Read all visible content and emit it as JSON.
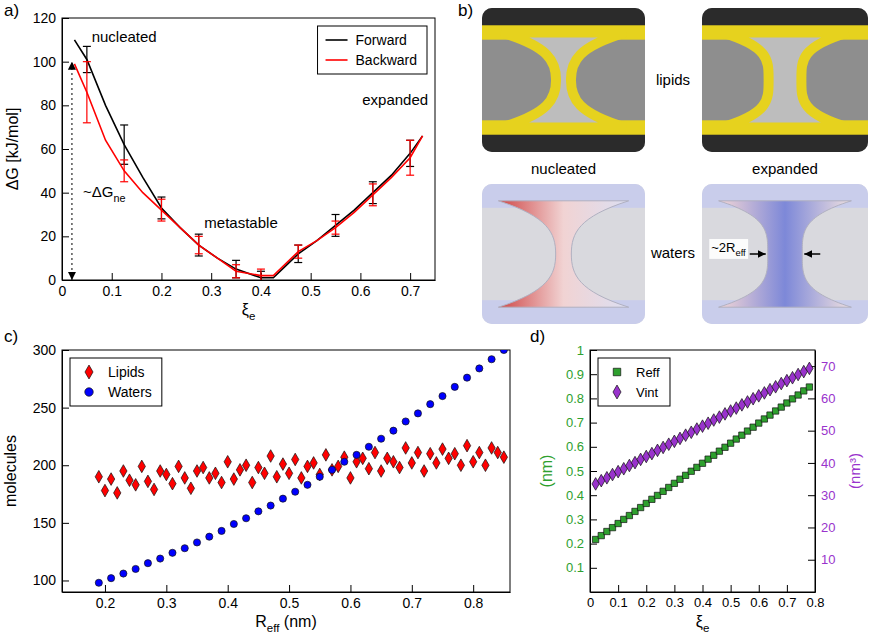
{
  "chart_data": [
    {
      "panel": "a)",
      "type": "line",
      "x": [
        0.025,
        0.05,
        0.0875,
        0.125,
        0.1625,
        0.2,
        0.2375,
        0.275,
        0.3125,
        0.35,
        0.4,
        0.425,
        0.475,
        0.5125,
        0.55,
        0.5875,
        0.625,
        0.6625,
        0.7,
        0.725
      ],
      "series": [
        {
          "name": "Forward",
          "color": "#000000",
          "line_style": "solid",
          "values": [
            110,
            101,
            80,
            62,
            47,
            33,
            24,
            16,
            10,
            5,
            1,
            1,
            12,
            18,
            25,
            32,
            40,
            48,
            58,
            66
          ],
          "errors": [
            null,
            6,
            null,
            9,
            null,
            5,
            null,
            5,
            null,
            4,
            3,
            null,
            4,
            null,
            5,
            null,
            5,
            null,
            6,
            null
          ]
        },
        {
          "name": "Backward",
          "color": "#ff0000",
          "line_style": "solid",
          "values": [
            99,
            86,
            64,
            50,
            40,
            32,
            24,
            16,
            10,
            4,
            2,
            2,
            13,
            18,
            24,
            31,
            39,
            47,
            56,
            66
          ],
          "errors": [
            null,
            14,
            null,
            5,
            null,
            5,
            null,
            4,
            null,
            3,
            3,
            null,
            3,
            null,
            3,
            null,
            5,
            null,
            8,
            null
          ]
        }
      ],
      "xlabel": {
        "text": "ξ",
        "subscript": "e"
      },
      "ylabel": "ΔG [kJ/mol]",
      "xlim": [
        0,
        0.75
      ],
      "ylim": [
        0,
        120
      ],
      "xticks": [
        0,
        0.1,
        0.2,
        0.3,
        0.4,
        0.5,
        0.6,
        0.7
      ],
      "yticks": [
        0,
        20,
        40,
        60,
        80,
        100,
        120
      ],
      "legend": "top-right",
      "annotations": [
        {
          "text": "nucleated",
          "x": 0.125,
          "y": 109
        },
        {
          "text": "metastable",
          "x": 0.36,
          "y": 24
        },
        {
          "text": "expanded",
          "x": 0.67,
          "y": 80
        },
        {
          "text": "~ΔG",
          "subscript": "ne",
          "x": 0.085,
          "y": 38,
          "arrow": {
            "x": 0.02,
            "y_from": 0,
            "y_to": 100
          }
        }
      ]
    },
    {
      "panel": "c)",
      "type": "scatter",
      "series": [
        {
          "name": "Lipids",
          "color": "#ff0000",
          "marker": "diamond",
          "x": [
            0.19,
            0.2,
            0.21,
            0.22,
            0.23,
            0.24,
            0.25,
            0.26,
            0.27,
            0.28,
            0.29,
            0.3,
            0.31,
            0.32,
            0.33,
            0.34,
            0.35,
            0.36,
            0.37,
            0.38,
            0.39,
            0.4,
            0.41,
            0.42,
            0.43,
            0.44,
            0.45,
            0.46,
            0.47,
            0.48,
            0.49,
            0.5,
            0.51,
            0.52,
            0.53,
            0.54,
            0.55,
            0.56,
            0.57,
            0.58,
            0.59,
            0.6,
            0.61,
            0.62,
            0.63,
            0.64,
            0.65,
            0.66,
            0.67,
            0.68,
            0.69,
            0.7,
            0.71,
            0.72,
            0.73,
            0.74,
            0.75,
            0.76,
            0.77,
            0.78,
            0.79,
            0.8,
            0.81,
            0.82,
            0.83,
            0.84,
            0.85
          ],
          "values": [
            190,
            178,
            188,
            176,
            195,
            187,
            183,
            199,
            186,
            179,
            195,
            192,
            184,
            199,
            189,
            180,
            195,
            198,
            189,
            193,
            185,
            203,
            188,
            196,
            200,
            185,
            198,
            193,
            208,
            190,
            201,
            193,
            205,
            189,
            199,
            202,
            192,
            209,
            196,
            199,
            207,
            189,
            203,
            206,
            197,
            211,
            195,
            206,
            203,
            198,
            215,
            202,
            211,
            195,
            210,
            202,
            214,
            206,
            210,
            200,
            217,
            203,
            211,
            200,
            215,
            211,
            207
          ]
        },
        {
          "name": "Waters",
          "color": "#0000ff",
          "marker": "circle",
          "x": [
            0.19,
            0.21,
            0.23,
            0.25,
            0.27,
            0.29,
            0.31,
            0.33,
            0.35,
            0.37,
            0.39,
            0.41,
            0.43,
            0.45,
            0.47,
            0.49,
            0.51,
            0.53,
            0.55,
            0.57,
            0.59,
            0.61,
            0.63,
            0.65,
            0.67,
            0.69,
            0.71,
            0.73,
            0.75,
            0.77,
            0.79,
            0.81,
            0.83,
            0.85
          ],
          "values": [
            98,
            102,
            106,
            110,
            115,
            119,
            124,
            128,
            133,
            138,
            143,
            149,
            154,
            160,
            165,
            171,
            177,
            183,
            190,
            196,
            203,
            209,
            216,
            223,
            230,
            238,
            245,
            253,
            260,
            268,
            276,
            284,
            292,
            300
          ]
        }
      ],
      "xlabel": {
        "text": "R",
        "subscript": "eff",
        "suffix": " (nm)"
      },
      "ylabel": "molecules",
      "xlim": [
        0.13,
        0.86
      ],
      "ylim": [
        90,
        300
      ],
      "xticks": [
        0.2,
        0.3,
        0.4,
        0.5,
        0.6,
        0.7,
        0.8
      ],
      "yticks": [
        100,
        150,
        200,
        250,
        300
      ],
      "legend": "top-left"
    },
    {
      "panel": "d)",
      "type": "scatter",
      "x": [
        0.02,
        0.04,
        0.06,
        0.08,
        0.1,
        0.12,
        0.14,
        0.16,
        0.18,
        0.2,
        0.22,
        0.24,
        0.26,
        0.28,
        0.3,
        0.32,
        0.34,
        0.36,
        0.38,
        0.4,
        0.42,
        0.44,
        0.46,
        0.48,
        0.5,
        0.52,
        0.54,
        0.56,
        0.58,
        0.6,
        0.62,
        0.64,
        0.66,
        0.68,
        0.7,
        0.72,
        0.74,
        0.76,
        0.78
      ],
      "series": [
        {
          "name": "Reff",
          "color": "#2ea02e",
          "marker": "square",
          "values": [
            0.217,
            0.233,
            0.25,
            0.266,
            0.283,
            0.3,
            0.316,
            0.333,
            0.349,
            0.366,
            0.383,
            0.399,
            0.416,
            0.432,
            0.449,
            0.466,
            0.482,
            0.499,
            0.515,
            0.532,
            0.549,
            0.565,
            0.582,
            0.598,
            0.615,
            0.632,
            0.648,
            0.665,
            0.681,
            0.698,
            0.715,
            0.731,
            0.748,
            0.764,
            0.781,
            0.798,
            0.814,
            0.831,
            0.847
          ]
        },
        {
          "name": "Vint",
          "color": "#9933cc",
          "marker": "diamond",
          "axis": "y2",
          "values": [
            33.5,
            34.5,
            35.4,
            36.4,
            37.3,
            38.2,
            39.2,
            40.1,
            41.1,
            42.0,
            42.9,
            43.9,
            44.8,
            45.8,
            46.7,
            47.6,
            48.6,
            49.5,
            50.5,
            51.4,
            52.3,
            53.3,
            54.2,
            55.2,
            56.1,
            57.0,
            58.0,
            58.9,
            59.9,
            60.8,
            61.7,
            62.7,
            63.6,
            64.6,
            65.5,
            66.4,
            67.4,
            68.3,
            69.3
          ]
        }
      ],
      "xlabel": {
        "text": "ξ",
        "subscript": "e"
      },
      "ylabel": "(nm)",
      "y2label": "(nm³)",
      "xlim": [
        0,
        0.8
      ],
      "ylim": [
        0,
        1
      ],
      "y2lim": [
        0,
        75
      ],
      "xticks": [
        0,
        0.1,
        0.2,
        0.3,
        0.4,
        0.5,
        0.6,
        0.7,
        0.8
      ],
      "yticks": [
        0.1,
        0.2,
        0.3,
        0.4,
        0.5,
        0.6,
        0.7,
        0.8,
        0.9,
        1
      ],
      "y2ticks": [
        10,
        20,
        30,
        40,
        50,
        60,
        70
      ],
      "legend": "top-left"
    }
  ],
  "illustration": {
    "panel": "b)",
    "rows": [
      "lipids",
      "waters"
    ],
    "columns": [
      "nucleated",
      "expanded"
    ],
    "annotation": {
      "text": "~2R",
      "subscript": "eff"
    }
  }
}
